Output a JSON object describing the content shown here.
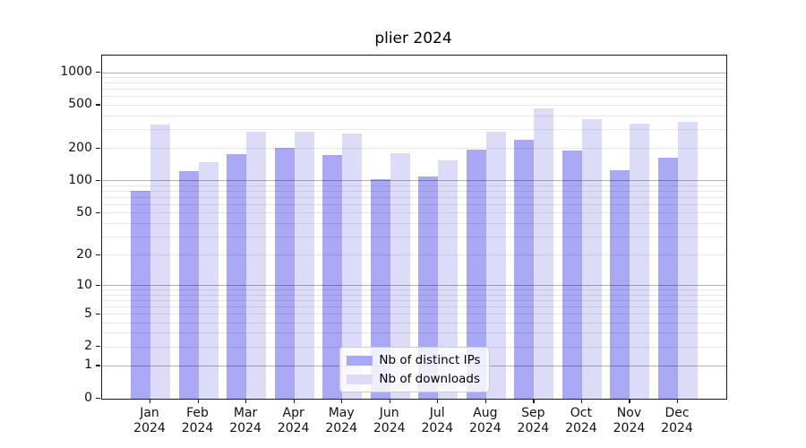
{
  "chart": {
    "title": "plier 2024",
    "legend": {
      "position": "lower center",
      "items": [
        "Nb of distinct IPs",
        "Nb of downloads"
      ]
    }
  },
  "chart_data": {
    "type": "bar",
    "title": "plier 2024",
    "categories": [
      "Jan 2024",
      "Feb 2024",
      "Mar 2024",
      "Apr 2024",
      "May 2024",
      "Jun 2024",
      "Jul 2024",
      "Aug 2024",
      "Sep 2024",
      "Oct 2024",
      "Nov 2024",
      "Dec 2024"
    ],
    "series": [
      {
        "name": "Nb of distinct IPs",
        "color": "#a8a8f5",
        "values": [
          81,
          122,
          176,
          201,
          172,
          104,
          110,
          196,
          242,
          191,
          125,
          163
        ]
      },
      {
        "name": "Nb of downloads",
        "color": "#dcdcf8",
        "values": [
          330,
          148,
          285,
          285,
          272,
          180,
          156,
          283,
          470,
          374,
          340,
          350
        ]
      }
    ],
    "xlabel": "",
    "ylabel": "",
    "yscale": "log1p",
    "yticks": [
      0,
      1,
      2,
      5,
      10,
      20,
      50,
      100,
      200,
      500,
      1000
    ],
    "ylim": [
      0,
      1435
    ],
    "grid": true,
    "grid_major_color": "#b3b3b3",
    "grid_minor_color": "#e8e8e8",
    "legend_position": "lower center",
    "background": "#ffffff"
  }
}
